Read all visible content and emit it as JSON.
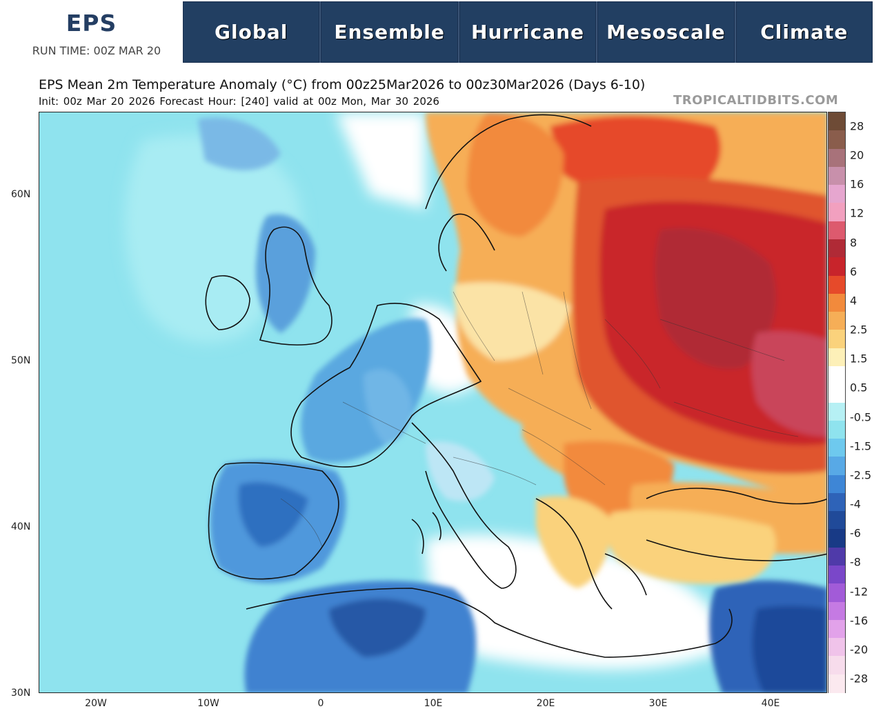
{
  "header": {
    "logo_title": "EPS",
    "run_time": "RUN TIME: 00Z MAR 20",
    "nav": [
      "Global",
      "Ensemble",
      "Hurricane",
      "Mesoscale",
      "Climate"
    ]
  },
  "map": {
    "title": "EPS Mean 2m Temperature Anomaly (°C) from 00z25Mar2026 to 00z30Mar2026 (Days 6-10)",
    "subtitle": "Init: 00z Mar 20 2026   Forecast Hour: [240]   valid at 00z Mon, Mar 30 2026",
    "credit": "TROPICALTIDBITS.COM",
    "lat_labels": [
      "60N",
      "50N",
      "40N",
      "30N"
    ],
    "lon_labels": [
      "20W",
      "10W",
      "0",
      "10E",
      "20E",
      "30E",
      "40E"
    ],
    "colors": {
      "ocean_cold": "#8fe3ee",
      "cold": "#5aa8e0",
      "cold_deep": "#2f6fc0",
      "neutral": "#ffffff",
      "warm_light": "#fbe3a6",
      "warm": "#f3a15a",
      "warm_strong": "#e0552e",
      "hot": "#c9262b"
    }
  },
  "colorbar": {
    "labels": [
      "28",
      "20",
      "16",
      "12",
      "8",
      "6",
      "4",
      "2.5",
      "1.5",
      "0.5",
      "-0.5",
      "-1.5",
      "-2.5",
      "-4",
      "-6",
      "-8",
      "-12",
      "-16",
      "-20",
      "-28"
    ],
    "colors": [
      "#6e4b36",
      "#8a5d4c",
      "#a8727a",
      "#c890ab",
      "#e6a6cf",
      "#f2a0bf",
      "#dd5a6e",
      "#b02a36",
      "#c8242b",
      "#e64a2a",
      "#f28a3c",
      "#f6ae57",
      "#fad27c",
      "#fdf0b8",
      "#ffffff",
      "#ffffff",
      "#b6f0f4",
      "#8fe3ee",
      "#6ec9ee",
      "#58a9e6",
      "#3e86d6",
      "#2e63b8",
      "#204a99",
      "#183a86",
      "#4f3aa9",
      "#7a47c9",
      "#a25bd8",
      "#c57ae3",
      "#e2a2ea",
      "#f0c3ea",
      "#f7dcec",
      "#fbe9ef"
    ]
  }
}
